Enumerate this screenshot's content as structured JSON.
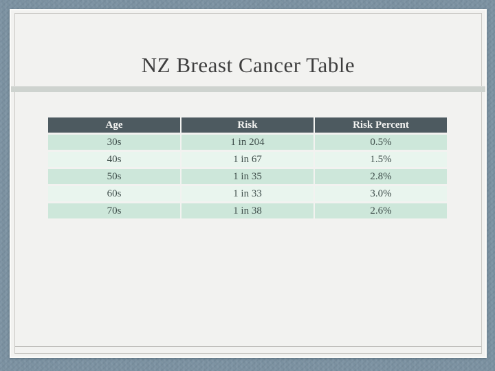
{
  "slide": {
    "title": "NZ Breast Cancer Table"
  },
  "table": {
    "columns": [
      "Age",
      "Risk",
      "Risk Percent"
    ],
    "rows": [
      [
        "30s",
        "1 in 204",
        "0.5%"
      ],
      [
        "40s",
        "1 in 67",
        "1.5%"
      ],
      [
        "50s",
        "1 in 35",
        "2.8%"
      ],
      [
        "60s",
        "1 in 33",
        "3.0%"
      ],
      [
        "70s",
        "1 in 38",
        "2.6%"
      ]
    ]
  },
  "chart_data": {
    "type": "table",
    "title": "NZ Breast Cancer Table",
    "columns": [
      "Age",
      "Risk",
      "Risk Percent"
    ],
    "categories": [
      "30s",
      "40s",
      "50s",
      "60s",
      "70s"
    ],
    "series": [
      {
        "name": "Risk",
        "values": [
          "1 in 204",
          "1 in 67",
          "1 in 35",
          "1 in 33",
          "1 in 38"
        ]
      },
      {
        "name": "Risk Percent",
        "values": [
          0.5,
          1.5,
          2.8,
          3.0,
          2.6
        ]
      }
    ]
  },
  "colors": {
    "background": "#7c92a2",
    "slide_bg": "#f2f2f0",
    "header_bg": "#4d5a60",
    "row_odd": "#cde7da",
    "row_even": "#e9f5ee",
    "divider": "#ced3cf",
    "title_text": "#3e3e3e",
    "cell_text": "#3e4d4a"
  }
}
